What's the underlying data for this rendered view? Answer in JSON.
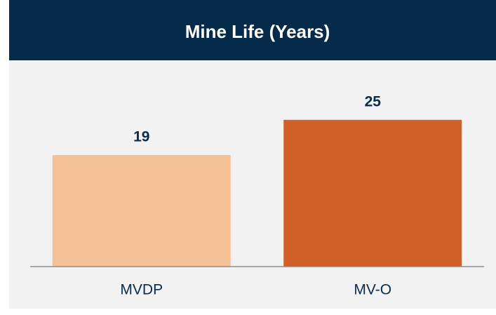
{
  "chart_data": {
    "type": "bar",
    "title": "Mine Life (Years)",
    "categories": [
      "MVDP",
      "MV-O"
    ],
    "values": [
      19,
      25
    ],
    "colors": [
      "#f5c297",
      "#d06028"
    ],
    "ylim": [
      0,
      30
    ],
    "grid": false
  }
}
